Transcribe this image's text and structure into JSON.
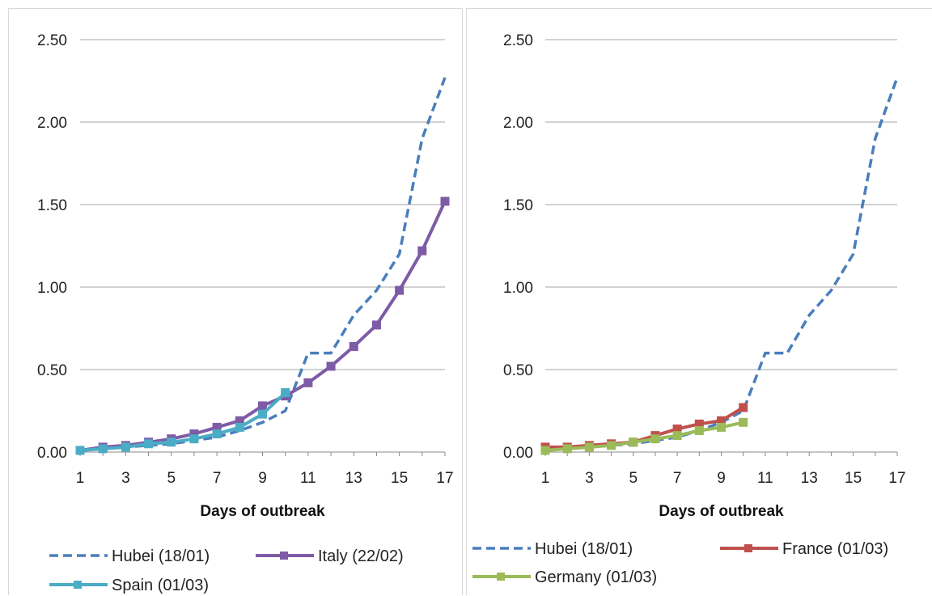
{
  "colors": {
    "hubei": "#4a7ebb",
    "italy": "#7e5ba6",
    "spain": "#4bacc6",
    "france": "#c0504d",
    "germany": "#9bbb59",
    "grid": "#a6a6a6"
  },
  "chart_data": [
    {
      "type": "line",
      "title": "",
      "xlabel": "Days of outbreak",
      "ylabel": "",
      "xlim": [
        1,
        17
      ],
      "ylim": [
        0,
        2.5
      ],
      "x_ticks": [
        "1",
        "3",
        "5",
        "7",
        "9",
        "11",
        "13",
        "15",
        "17"
      ],
      "y_ticks": [
        "0.00",
        "0.50",
        "1.00",
        "1.50",
        "2.00",
        "2.50"
      ],
      "grid": "horizontal",
      "legend": "bottom",
      "series": [
        {
          "name": "Hubei (18/01)",
          "style": "dashed",
          "color": "#4a7ebb",
          "marker": "none",
          "x": [
            1,
            2,
            3,
            4,
            5,
            6,
            7,
            8,
            9,
            10,
            11,
            12,
            13,
            14,
            15,
            16,
            17
          ],
          "y": [
            0.01,
            0.02,
            0.03,
            0.04,
            0.05,
            0.07,
            0.09,
            0.13,
            0.18,
            0.25,
            0.6,
            0.6,
            0.83,
            0.98,
            1.2,
            1.9,
            2.27
          ]
        },
        {
          "name": "Italy (22/02)",
          "style": "solid",
          "color": "#7e5ba6",
          "marker": "square",
          "x": [
            1,
            2,
            3,
            4,
            5,
            6,
            7,
            8,
            9,
            10,
            11,
            12,
            13,
            14,
            15,
            16,
            17
          ],
          "y": [
            0.01,
            0.03,
            0.04,
            0.06,
            0.08,
            0.11,
            0.15,
            0.19,
            0.28,
            0.34,
            0.42,
            0.52,
            0.64,
            0.77,
            0.98,
            1.22,
            1.52
          ]
        },
        {
          "name": "Spain (01/03)",
          "style": "solid",
          "color": "#4bacc6",
          "marker": "square",
          "x": [
            1,
            2,
            3,
            4,
            5,
            6,
            7,
            8,
            9,
            10
          ],
          "y": [
            0.01,
            0.02,
            0.03,
            0.05,
            0.06,
            0.08,
            0.11,
            0.15,
            0.23,
            0.36
          ]
        }
      ]
    },
    {
      "type": "line",
      "title": "",
      "xlabel": "Days of outbreak",
      "ylabel": "",
      "xlim": [
        1,
        17
      ],
      "ylim": [
        0,
        2.5
      ],
      "x_ticks": [
        "1",
        "3",
        "5",
        "7",
        "9",
        "11",
        "13",
        "15",
        "17"
      ],
      "y_ticks": [
        "0.00",
        "0.50",
        "1.00",
        "1.50",
        "2.00",
        "2.50"
      ],
      "grid": "horizontal",
      "legend": "bottom",
      "series": [
        {
          "name": "Hubei (18/01)",
          "style": "dashed",
          "color": "#4a7ebb",
          "marker": "none",
          "x": [
            1,
            2,
            3,
            4,
            5,
            6,
            7,
            8,
            9,
            10,
            11,
            12,
            13,
            14,
            15,
            16,
            17
          ],
          "y": [
            0.01,
            0.02,
            0.03,
            0.04,
            0.05,
            0.07,
            0.09,
            0.13,
            0.18,
            0.25,
            0.6,
            0.6,
            0.83,
            0.98,
            1.2,
            1.9,
            2.27
          ]
        },
        {
          "name": "France (01/03)",
          "style": "solid",
          "color": "#c0504d",
          "marker": "square",
          "x": [
            1,
            2,
            3,
            4,
            5,
            6,
            7,
            8,
            9,
            10
          ],
          "y": [
            0.03,
            0.03,
            0.04,
            0.05,
            0.06,
            0.1,
            0.14,
            0.17,
            0.19,
            0.27
          ]
        },
        {
          "name": "Germany (01/03)",
          "style": "solid",
          "color": "#9bbb59",
          "marker": "square",
          "x": [
            1,
            2,
            3,
            4,
            5,
            6,
            7,
            8,
            9,
            10
          ],
          "y": [
            0.01,
            0.02,
            0.03,
            0.04,
            0.06,
            0.08,
            0.1,
            0.13,
            0.15,
            0.18
          ]
        }
      ]
    }
  ]
}
